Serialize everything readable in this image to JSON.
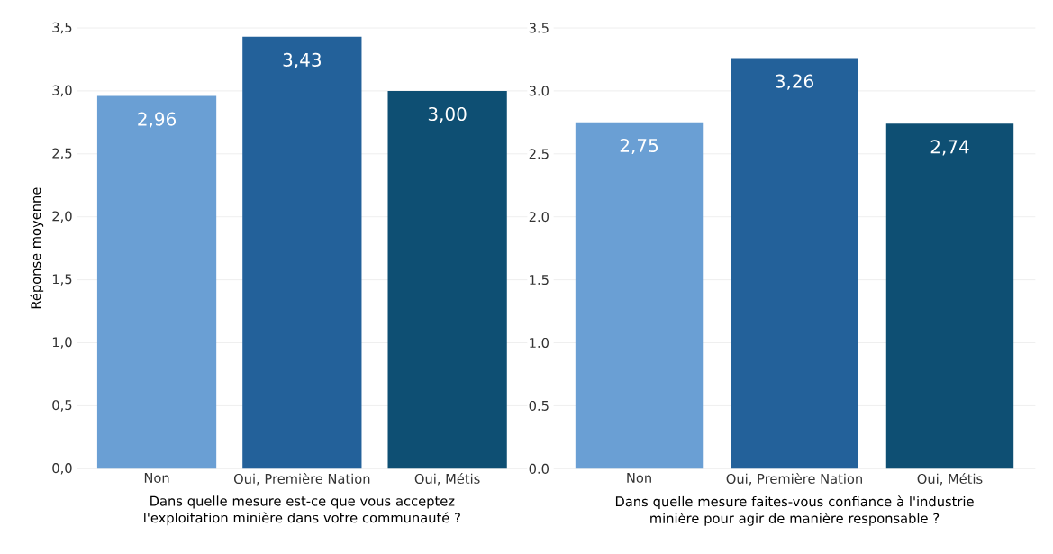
{
  "chart_data": [
    {
      "type": "bar",
      "categories": [
        "Non",
        "Oui, Première Nation",
        "Oui, Métis"
      ],
      "values": [
        2.96,
        3.43,
        3.0
      ],
      "value_labels": [
        "2,96",
        "3,43",
        "3,00"
      ],
      "colors": [
        "#6a9fd4",
        "#23619a",
        "#0e4f73"
      ],
      "ylabel": "Réponse moyenne",
      "xlabel": "Dans quelle mesure est-ce que vous acceptez l'exploitation minière dans votre communauté ?",
      "ylim": [
        0,
        3.5
      ],
      "yticks": [
        {
          "value": 0,
          "label": "0,0"
        },
        {
          "value": 0.5,
          "label": "0,5"
        },
        {
          "value": 1,
          "label": "1,0"
        },
        {
          "value": 1.5,
          "label": "1,5"
        },
        {
          "value": 2,
          "label": "2,0"
        },
        {
          "value": 2.5,
          "label": "2,5"
        },
        {
          "value": 3,
          "label": "3,0"
        },
        {
          "value": 3.5,
          "label": "3,5"
        }
      ],
      "grid": "y"
    },
    {
      "type": "bar",
      "categories": [
        "Non",
        "Oui, Première Nation",
        "Oui, Métis"
      ],
      "values": [
        2.75,
        3.26,
        2.74
      ],
      "value_labels": [
        "2,75",
        "3,26",
        "2,74"
      ],
      "colors": [
        "#6a9fd4",
        "#23619a",
        "#0e4f73"
      ],
      "xlabel": "Dans quelle mesure faites-vous confiance à l'industrie minière pour agir de manière responsable ?",
      "ylim": [
        0,
        3.5
      ],
      "yticks": [
        {
          "value": 0,
          "label": "0.0"
        },
        {
          "value": 0.5,
          "label": "0.5"
        },
        {
          "value": 1,
          "label": "1.0"
        },
        {
          "value": 1.5,
          "label": "1.5"
        },
        {
          "value": 2,
          "label": "2.0"
        },
        {
          "value": 2.5,
          "label": "2.5"
        },
        {
          "value": 3,
          "label": "3.0"
        },
        {
          "value": 3.5,
          "label": "3.5"
        }
      ],
      "grid": "y"
    }
  ]
}
